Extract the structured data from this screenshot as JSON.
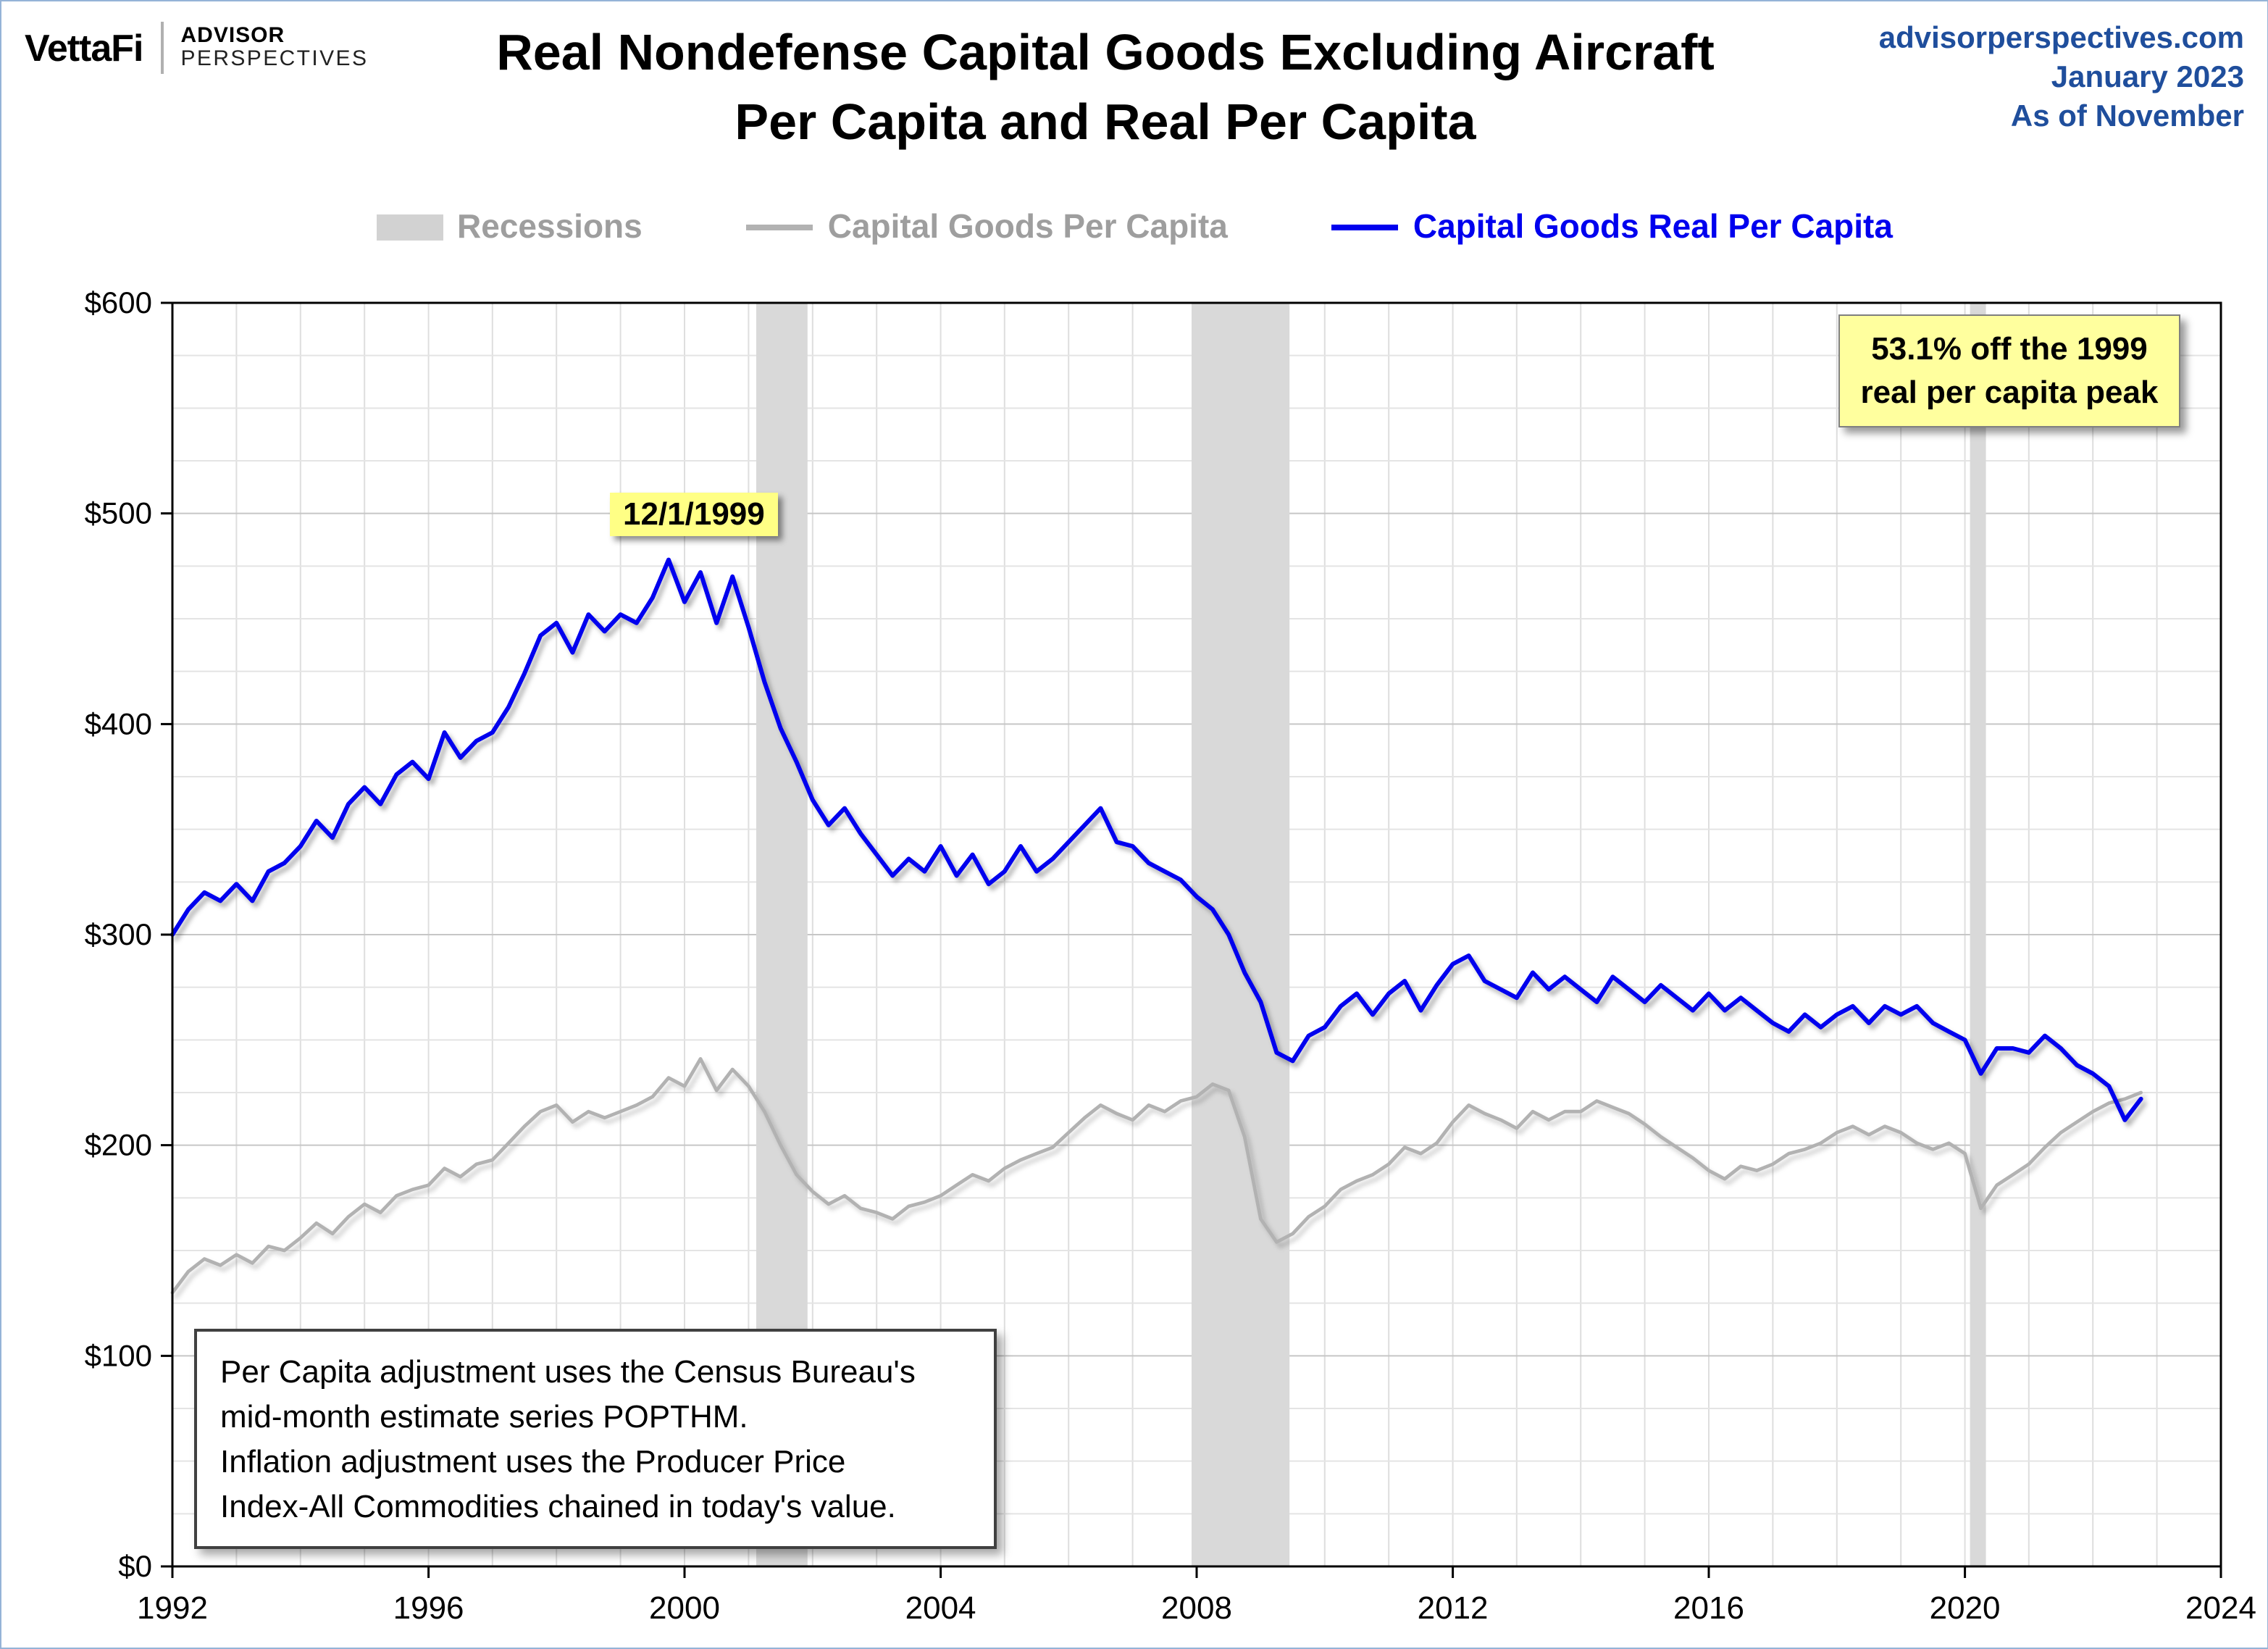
{
  "brand": {
    "name": "VettaFi",
    "tag1": "ADVISOR",
    "tag2": "PERSPECTIVES"
  },
  "header": {
    "title_line1": "Real Nondefense Capital Goods Excluding Aircraft",
    "title_line2": "Per Capita and Real Per Capita",
    "site": "advisorperspectives.com",
    "date": "January 2023",
    "asof": "As of November"
  },
  "legend": {
    "recessions": "Recessions",
    "nominal": "Capital Goods Per Capita",
    "real": "Capital Goods Real Per Capita"
  },
  "annotations": {
    "peak_label": "12/1/1999",
    "callout_line1": "53.1% off the 1999",
    "callout_line2": "real per capita peak"
  },
  "footnote": {
    "lines": [
      "Per Capita adjustment uses the Census Bureau's",
      "mid-month estimate series POPTHM.",
      "Inflation adjustment uses the Producer Price",
      "Index-All Commodities chained in today's value."
    ]
  },
  "chart_data": {
    "type": "line",
    "title": "Real Nondefense Capital Goods Excluding Aircraft Per Capita and Real Per Capita",
    "xlabel": "",
    "ylabel": "",
    "xlim": [
      1992,
      2024
    ],
    "ylim": [
      0,
      600
    ],
    "x_ticks": [
      1992,
      1996,
      2000,
      2004,
      2008,
      2012,
      2016,
      2020,
      2024
    ],
    "y_ticks": [
      0,
      100,
      200,
      300,
      400,
      500,
      600
    ],
    "y_tick_prefix": "$",
    "grid": true,
    "legend_position": "top",
    "x_start": 1992,
    "x_step": 0.25,
    "recessions": [
      [
        2001.12,
        2001.92
      ],
      [
        2007.92,
        2009.45
      ],
      [
        2020.08,
        2020.33
      ]
    ],
    "colors": {
      "recession_band": "#d9d9d9",
      "nominal": "#b2b2b2",
      "real": "#0000ee"
    },
    "series": [
      {
        "name": "Capital Goods Per Capita",
        "color": "#b2b2b2",
        "values": [
          130,
          140,
          146,
          143,
          148,
          144,
          152,
          150,
          156,
          163,
          158,
          166,
          172,
          168,
          176,
          179,
          181,
          189,
          185,
          191,
          193,
          201,
          209,
          216,
          219,
          211,
          216,
          213,
          216,
          219,
          223,
          232,
          228,
          241,
          226,
          236,
          228,
          216,
          200,
          186,
          178,
          172,
          176,
          170,
          168,
          165,
          171,
          173,
          176,
          181,
          186,
          183,
          189,
          193,
          196,
          199,
          206,
          213,
          219,
          215,
          212,
          219,
          216,
          221,
          223,
          229,
          226,
          204,
          165,
          154,
          158,
          166,
          171,
          179,
          183,
          186,
          191,
          199,
          196,
          201,
          211,
          219,
          215,
          212,
          208,
          216,
          212,
          216,
          216,
          221,
          218,
          215,
          210,
          204,
          199,
          194,
          188,
          184,
          190,
          188,
          191,
          196,
          198,
          201,
          206,
          209,
          205,
          209,
          206,
          201,
          198,
          201,
          196,
          170,
          181,
          186,
          191,
          199,
          206,
          211,
          216,
          220,
          222,
          225
        ]
      },
      {
        "name": "Capital Goods Real Per Capita",
        "color": "#0000ee",
        "values": [
          300,
          312,
          320,
          316,
          324,
          316,
          330,
          334,
          342,
          354,
          346,
          362,
          370,
          362,
          376,
          382,
          374,
          396,
          384,
          392,
          396,
          408,
          424,
          442,
          448,
          434,
          452,
          444,
          452,
          448,
          460,
          478,
          458,
          472,
          448,
          470,
          446,
          420,
          398,
          382,
          364,
          352,
          360,
          348,
          338,
          328,
          336,
          330,
          342,
          328,
          338,
          324,
          330,
          342,
          330,
          336,
          344,
          352,
          360,
          344,
          342,
          334,
          330,
          326,
          318,
          312,
          300,
          282,
          268,
          244,
          240,
          252,
          256,
          266,
          272,
          262,
          272,
          278,
          264,
          276,
          286,
          290,
          278,
          274,
          270,
          282,
          274,
          280,
          274,
          268,
          280,
          274,
          268,
          276,
          270,
          264,
          272,
          264,
          270,
          264,
          258,
          254,
          262,
          256,
          262,
          266,
          258,
          266,
          262,
          266,
          258,
          254,
          250,
          234,
          246,
          246,
          244,
          252,
          246,
          238,
          234,
          228,
          212,
          222
        ]
      }
    ],
    "annotations": [
      {
        "text": "12/1/1999",
        "x": 1999.9,
        "y": 500
      },
      {
        "text": "53.1% off the 1999 real per capita peak",
        "x": 2020.5,
        "y": 575
      }
    ]
  }
}
